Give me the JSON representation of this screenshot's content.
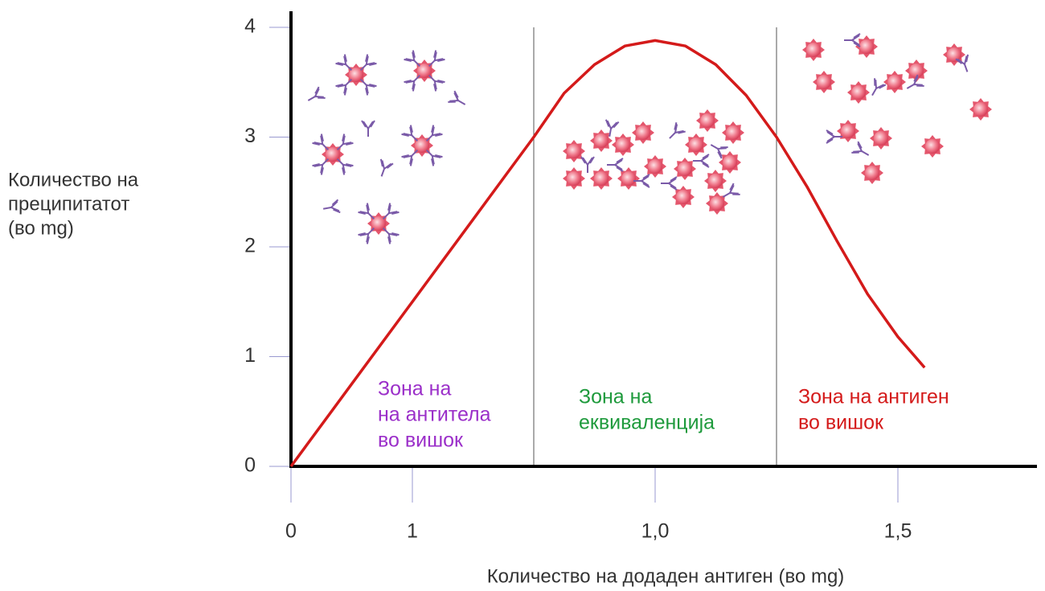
{
  "chart_data": {
    "type": "line",
    "x_label": "Количество на додаден антиген (во mg)",
    "y_label": [
      "Количество на",
      "преципитатот",
      "(во mg)"
    ],
    "xlim": [
      0,
      6.2
    ],
    "ylim": [
      0,
      4
    ],
    "xticks": [
      0,
      1,
      {
        "value": 3,
        "label": "1,0"
      },
      {
        "value": 5,
        "label": "1,5"
      }
    ],
    "yticks": [
      0,
      1,
      2,
      3,
      4
    ],
    "dividers": [
      2,
      4
    ],
    "series": [
      {
        "color": "#d41a1a",
        "x": [
          0,
          0.5,
          1,
          1.5,
          2,
          2.25,
          2.5,
          2.75,
          3,
          3.25,
          3.5,
          3.75,
          4,
          4.25,
          4.5,
          4.75,
          5,
          5.22
        ],
        "values": [
          0,
          0.75,
          1.5,
          2.25,
          3.0,
          3.4,
          3.66,
          3.83,
          3.88,
          3.83,
          3.66,
          3.38,
          3.0,
          2.55,
          2.05,
          1.57,
          1.18,
          0.9
        ]
      }
    ],
    "zones": [
      {
        "lines": [
          "Зона на",
          "на антитела",
          "во вишок"
        ],
        "color": "#9b2fc9"
      },
      {
        "lines": [
          "Зона на",
          "еквиваленција"
        ],
        "color": "#1e9a3c"
      },
      {
        "lines": [
          "Зона на антиген",
          "во вишок"
        ],
        "color": "#d41a1a"
      }
    ]
  }
}
